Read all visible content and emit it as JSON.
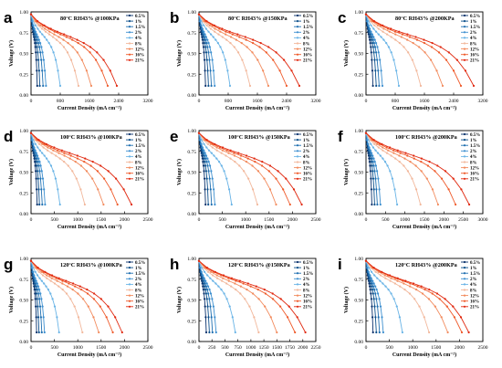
{
  "figure": {
    "y_label": "Voltage (V)",
    "x_label": "Current Density (mA cm⁻²)",
    "legend": [
      "0.5%",
      "1%",
      "1.5%",
      "2%",
      "4%",
      "8%",
      "12%",
      "16%",
      "21%"
    ],
    "series_colors": [
      "#08306b",
      "#0b4f8a",
      "#1f6fb0",
      "#3d8fcf",
      "#6ab4e6",
      "#f2b89c",
      "#f28a5c",
      "#ef5a2a",
      "#e0280f"
    ]
  },
  "chart_data": [
    {
      "type": "line",
      "panel": "a",
      "title": "80°C RH43% @100KPa",
      "xlim": [
        0,
        3200
      ],
      "ylim": [
        0,
        1.0
      ],
      "xticks": [
        0,
        800,
        1600,
        2400,
        3200
      ],
      "yticks": [
        0.0,
        0.25,
        0.5,
        0.75,
        1.0
      ],
      "series": [
        {
          "name": "0.5%",
          "limit": 170
        },
        {
          "name": "1%",
          "limit": 240
        },
        {
          "name": "1.5%",
          "limit": 330
        },
        {
          "name": "2%",
          "limit": 410
        },
        {
          "name": "4%",
          "limit": 800
        },
        {
          "name": "8%",
          "limit": 1300
        },
        {
          "name": "12%",
          "limit": 1650
        },
        {
          "name": "16%",
          "limit": 2100
        },
        {
          "name": "21%",
          "limit": 2350
        }
      ]
    },
    {
      "type": "line",
      "panel": "b",
      "title": "80°C RH43% @150KPa",
      "xlim": [
        0,
        3200
      ],
      "ylim": [
        0,
        1.0
      ],
      "xticks": [
        0,
        800,
        1600,
        2400,
        3200
      ],
      "yticks": [
        0.0,
        0.25,
        0.5,
        0.75,
        1.0
      ],
      "series": [
        {
          "name": "0.5%",
          "limit": 180
        },
        {
          "name": "1%",
          "limit": 260
        },
        {
          "name": "1.5%",
          "limit": 340
        },
        {
          "name": "2%",
          "limit": 430
        },
        {
          "name": "4%",
          "limit": 850
        },
        {
          "name": "8%",
          "limit": 1400
        },
        {
          "name": "12%",
          "limit": 1900
        },
        {
          "name": "16%",
          "limit": 2400
        },
        {
          "name": "21%",
          "limit": 2750
        }
      ]
    },
    {
      "type": "line",
      "panel": "c",
      "title": "80°C RH43% @200KPa",
      "xlim": [
        0,
        3200
      ],
      "ylim": [
        0,
        1.0
      ],
      "xticks": [
        0,
        800,
        1600,
        2400,
        3200
      ],
      "yticks": [
        0.0,
        0.25,
        0.5,
        0.75,
        1.0
      ],
      "series": [
        {
          "name": "0.5%",
          "limit": 190
        },
        {
          "name": "1%",
          "limit": 280
        },
        {
          "name": "1.5%",
          "limit": 360
        },
        {
          "name": "2%",
          "limit": 450
        },
        {
          "name": "4%",
          "limit": 900
        },
        {
          "name": "8%",
          "limit": 1500
        },
        {
          "name": "12%",
          "limit": 2100
        },
        {
          "name": "16%",
          "limit": 2600
        },
        {
          "name": "21%",
          "limit": 2950
        }
      ]
    },
    {
      "type": "line",
      "panel": "d",
      "title": "100°C RH43% @100KPa",
      "xlim": [
        0,
        2500
      ],
      "ylim": [
        0,
        1.0
      ],
      "xticks": [
        0,
        500,
        1000,
        1500,
        2000,
        2500
      ],
      "yticks": [
        0.0,
        0.25,
        0.5,
        0.75,
        1.0
      ],
      "series": [
        {
          "name": "0.5%",
          "limit": 130
        },
        {
          "name": "1%",
          "limit": 180
        },
        {
          "name": "1.5%",
          "limit": 240
        },
        {
          "name": "2%",
          "limit": 300
        },
        {
          "name": "4%",
          "limit": 620
        },
        {
          "name": "8%",
          "limit": 1150
        },
        {
          "name": "12%",
          "limit": 1550
        },
        {
          "name": "16%",
          "limit": 1850
        },
        {
          "name": "21%",
          "limit": 2150
        }
      ]
    },
    {
      "type": "line",
      "panel": "e",
      "title": "100°C RH43% @150KPa",
      "xlim": [
        0,
        2500
      ],
      "ylim": [
        0,
        1.0
      ],
      "xticks": [
        0,
        500,
        1000,
        1500,
        2000,
        2500
      ],
      "yticks": [
        0.0,
        0.25,
        0.5,
        0.75,
        1.0
      ],
      "series": [
        {
          "name": "0.5%",
          "limit": 140
        },
        {
          "name": "1%",
          "limit": 200
        },
        {
          "name": "1.5%",
          "limit": 270
        },
        {
          "name": "2%",
          "limit": 340
        },
        {
          "name": "4%",
          "limit": 700
        },
        {
          "name": "8%",
          "limit": 1250
        },
        {
          "name": "12%",
          "limit": 1650
        },
        {
          "name": "16%",
          "limit": 1950
        },
        {
          "name": "21%",
          "limit": 2200
        }
      ]
    },
    {
      "type": "line",
      "panel": "f",
      "title": "100°C RH43% @200KPa",
      "xlim": [
        0,
        3000
      ],
      "ylim": [
        0,
        1.0
      ],
      "xticks": [
        0,
        500,
        1000,
        1500,
        2000,
        2500,
        3000
      ],
      "yticks": [
        0.0,
        0.25,
        0.5,
        0.75,
        1.0
      ],
      "series": [
        {
          "name": "0.5%",
          "limit": 150
        },
        {
          "name": "1%",
          "limit": 220
        },
        {
          "name": "1.5%",
          "limit": 290
        },
        {
          "name": "2%",
          "limit": 370
        },
        {
          "name": "4%",
          "limit": 800
        },
        {
          "name": "8%",
          "limit": 1400
        },
        {
          "name": "12%",
          "limit": 1850
        },
        {
          "name": "16%",
          "limit": 2300
        },
        {
          "name": "21%",
          "limit": 2650
        }
      ]
    },
    {
      "type": "line",
      "panel": "g",
      "title": "120°C RH43% @100KPa",
      "xlim": [
        0,
        2500
      ],
      "ylim": [
        0,
        1.0
      ],
      "xticks": [
        0,
        500,
        1000,
        1500,
        2000,
        2500
      ],
      "yticks": [
        0.0,
        0.25,
        0.5,
        0.75,
        1.0
      ],
      "series": [
        {
          "name": "0.5%",
          "limit": 120
        },
        {
          "name": "1%",
          "limit": 170
        },
        {
          "name": "1.5%",
          "limit": 230
        },
        {
          "name": "2%",
          "limit": 290
        },
        {
          "name": "4%",
          "limit": 600
        },
        {
          "name": "8%",
          "limit": 1100
        },
        {
          "name": "12%",
          "limit": 1450
        },
        {
          "name": "16%",
          "limit": 1750
        },
        {
          "name": "21%",
          "limit": 1950
        }
      ]
    },
    {
      "type": "line",
      "panel": "h",
      "title": "120°C RH43% @150KPa",
      "xlim": [
        0,
        2250
      ],
      "ylim": [
        0,
        1.0
      ],
      "xticks": [
        0,
        250,
        500,
        750,
        1000,
        1250,
        1500,
        1750,
        2000,
        2250
      ],
      "yticks": [
        0.0,
        0.25,
        0.5,
        0.75,
        1.0
      ],
      "series": [
        {
          "name": "0.5%",
          "limit": 140
        },
        {
          "name": "1%",
          "limit": 200
        },
        {
          "name": "1.5%",
          "limit": 260
        },
        {
          "name": "2%",
          "limit": 330
        },
        {
          "name": "4%",
          "limit": 700
        },
        {
          "name": "8%",
          "limit": 1150
        },
        {
          "name": "12%",
          "limit": 1500
        },
        {
          "name": "16%",
          "limit": 1850
        },
        {
          "name": "21%",
          "limit": 2050
        }
      ]
    },
    {
      "type": "line",
      "panel": "i",
      "title": "120°C RH43% @200KPa",
      "xlim": [
        0,
        2500
      ],
      "ylim": [
        0,
        1.0
      ],
      "xticks": [
        0,
        500,
        1000,
        1500,
        2000,
        2500
      ],
      "yticks": [
        0.0,
        0.25,
        0.5,
        0.75,
        1.0
      ],
      "series": [
        {
          "name": "0.5%",
          "limit": 150
        },
        {
          "name": "1%",
          "limit": 220
        },
        {
          "name": "1.5%",
          "limit": 290
        },
        {
          "name": "2%",
          "limit": 370
        },
        {
          "name": "4%",
          "limit": 780
        },
        {
          "name": "8%",
          "limit": 1350
        },
        {
          "name": "12%",
          "limit": 1750
        },
        {
          "name": "16%",
          "limit": 2050
        },
        {
          "name": "21%",
          "limit": 2200
        }
      ]
    }
  ]
}
